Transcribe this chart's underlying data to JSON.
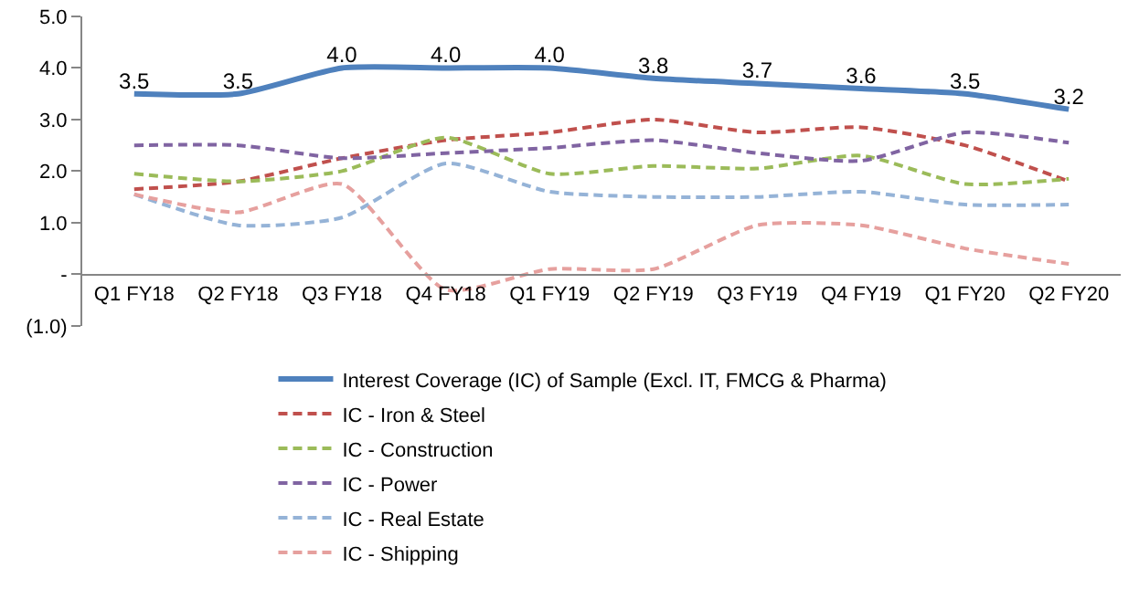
{
  "chart_data": {
    "type": "line",
    "categories": [
      "Q1 FY18",
      "Q2 FY18",
      "Q3 FY18",
      "Q4 FY18",
      "Q1 FY19",
      "Q2 FY19",
      "Q3 FY19",
      "Q4 FY19",
      "Q1 FY20",
      "Q2 FY20"
    ],
    "series": [
      {
        "name": "Interest Coverage (IC) of Sample (Excl. IT, FMCG & Pharma)",
        "color": "#4f81bd",
        "line_style": "solid",
        "values": [
          3.5,
          3.5,
          4.0,
          4.0,
          4.0,
          3.8,
          3.7,
          3.6,
          3.5,
          3.2
        ],
        "value_labels": [
          "3.5",
          "3.5",
          "4.0",
          "4.0",
          "4.0",
          "3.8",
          "3.7",
          "3.6",
          "3.5",
          "3.2"
        ]
      },
      {
        "name": "IC - Iron & Steel",
        "color": "#c0504d",
        "line_style": "dashed",
        "values": [
          1.65,
          1.8,
          2.25,
          2.6,
          2.75,
          3.0,
          2.75,
          2.85,
          2.5,
          1.8
        ]
      },
      {
        "name": "IC - Construction",
        "color": "#9bbb59",
        "line_style": "dashed",
        "values": [
          1.95,
          1.8,
          2.0,
          2.65,
          1.95,
          2.1,
          2.05,
          2.3,
          1.75,
          1.85
        ]
      },
      {
        "name": "IC - Power",
        "color": "#8064a2",
        "line_style": "dashed",
        "values": [
          2.5,
          2.5,
          2.25,
          2.35,
          2.45,
          2.6,
          2.35,
          2.2,
          2.75,
          2.55
        ]
      },
      {
        "name": "IC - Real Estate",
        "color": "#95b3d7",
        "line_style": "dashed",
        "values": [
          1.55,
          0.95,
          1.1,
          2.15,
          1.6,
          1.5,
          1.5,
          1.6,
          1.35,
          1.35
        ]
      },
      {
        "name": "IC - Shipping",
        "color": "#e6a09e",
        "line_style": "dashed",
        "values": [
          1.55,
          1.2,
          1.75,
          -0.3,
          0.1,
          0.1,
          0.95,
          0.95,
          0.5,
          0.2
        ]
      }
    ],
    "ylim": [
      -1.0,
      5.0
    ],
    "yticks": [
      {
        "value": -1.0,
        "label": "(1.0)"
      },
      {
        "value": 0,
        "label": "-"
      },
      {
        "value": 1.0,
        "label": "1.0"
      },
      {
        "value": 2.0,
        "label": "2.0"
      },
      {
        "value": 3.0,
        "label": "3.0"
      },
      {
        "value": 4.0,
        "label": "4.0"
      },
      {
        "value": 5.0,
        "label": "5.0"
      }
    ],
    "legend": "bottom",
    "marker": "none"
  }
}
